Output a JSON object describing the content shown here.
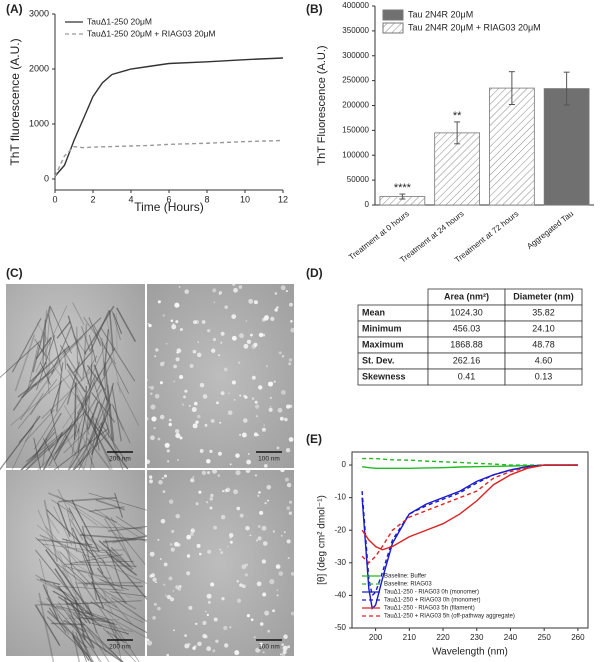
{
  "panel_labels": [
    "(A)",
    "(B)",
    "(C)",
    "(D)",
    "(E)"
  ],
  "chart_data": [
    {
      "type": "line",
      "x_label": "Time (Hours)",
      "y_label": "ThT fluorescence (A.U.)",
      "x": [
        0,
        0.5,
        1,
        1.5,
        2,
        2.5,
        3,
        4,
        5,
        6,
        8,
        10,
        12
      ],
      "xlim": [
        0,
        12
      ],
      "xticks": [
        0,
        2,
        4,
        6,
        8,
        10,
        12
      ],
      "ylim": [
        -200,
        3000
      ],
      "yticks": [
        0,
        1000,
        2000,
        3000
      ],
      "legend": "upper left",
      "frame": false,
      "series": [
        {
          "name": "TauΔ1-250 20μM",
          "color": "#333333",
          "dash": false,
          "values": [
            50,
            250,
            700,
            1100,
            1500,
            1750,
            1900,
            2000,
            2050,
            2100,
            2130,
            2170,
            2200
          ]
        },
        {
          "name": "TauΔ1-250 20μM + RIAG03 20μM",
          "color": "#999999",
          "dash": true,
          "values": [
            50,
            420,
            590,
            570,
            580,
            585,
            590,
            600,
            610,
            630,
            650,
            680,
            700
          ]
        }
      ]
    },
    {
      "type": "bar",
      "y_label": "ThT Fluorescence (A.U.)",
      "categories": [
        "Treatment at 0 hours",
        "Treatment at 24 hours",
        "Treatment at 72 hours",
        "Aggregated Tau"
      ],
      "ylim": [
        0,
        400000
      ],
      "yticks": [
        0,
        50000,
        100000,
        150000,
        200000,
        250000,
        300000,
        350000,
        400000
      ],
      "annotations": [
        "****",
        "**",
        null,
        null
      ],
      "legend": "upper left",
      "series": [
        {
          "name": "Tau 2N4R 20μM",
          "color": "#707070",
          "hatch": false,
          "values": [
            null,
            null,
            null,
            234000
          ],
          "errors": [
            null,
            null,
            null,
            33000
          ]
        },
        {
          "name": "Tau 2N4R 20μM + RIAG03 20μM",
          "color": "#ffffff",
          "hatch": true,
          "values": [
            17000,
            145000,
            235000,
            null
          ],
          "errors": [
            5000,
            22000,
            33000,
            null
          ]
        }
      ]
    },
    {
      "type": "line",
      "x_label": "Wavelength (nm)",
      "y_label": "[θ] (deg cm² dmol⁻¹)",
      "x": [
        196,
        198,
        199,
        200,
        202,
        205,
        210,
        215,
        220,
        225,
        230,
        235,
        240,
        245,
        250,
        260
      ],
      "xlim": [
        193,
        263
      ],
      "xticks": [
        200,
        210,
        220,
        230,
        240,
        250,
        260
      ],
      "ylim": [
        -50,
        4
      ],
      "yticks": [
        0,
        -10,
        -20,
        -30,
        -40,
        -50
      ],
      "legend": "lower left",
      "frame": true,
      "series": [
        {
          "name": "Baseline: Buffer",
          "color": "#22bb22",
          "dash": false,
          "values": [
            -0.5,
            -0.8,
            -0.9,
            -1,
            -1,
            -1,
            -1,
            -0.9,
            -0.8,
            -0.6,
            -0.5,
            -0.4,
            -0.3,
            -0.2,
            -0.1,
            0
          ]
        },
        {
          "name": "Baseline: RIAG03",
          "color": "#22bb22",
          "dash": true,
          "values": [
            2,
            2,
            2,
            2,
            1.8,
            1.6,
            1.5,
            1.2,
            1,
            0.8,
            0.5,
            0.3,
            0,
            0,
            0,
            0
          ]
        },
        {
          "name": "TauΔ1-250 - RIAG03 0h (monomer)",
          "color": "#1a1acc",
          "dash": false,
          "values": [
            -10,
            -38,
            -44,
            -43,
            -35,
            -24,
            -15,
            -12,
            -10,
            -8,
            -5,
            -3,
            -1.5,
            -0.5,
            0,
            0
          ]
        },
        {
          "name": "TauΔ1-250 + RIAG03 0h (monomer)",
          "color": "#1a1acc",
          "dash": true,
          "values": [
            -8,
            -35,
            -40,
            -39,
            -33,
            -23,
            -15,
            -12.5,
            -10.5,
            -8.5,
            -5.5,
            -3,
            -1.5,
            -0.5,
            0,
            0
          ]
        },
        {
          "name": "TauΔ1-250 - RIAG03 5h (filament)",
          "color": "#dd2222",
          "dash": false,
          "values": [
            -20,
            -23,
            -24,
            -25,
            -26,
            -25,
            -22,
            -20,
            -18,
            -15,
            -11,
            -6,
            -3,
            -1,
            0,
            0
          ]
        },
        {
          "name": "TauΔ1-250 + RIAG03 5h (off-pathway aggregate)",
          "color": "#dd2222",
          "dash": true,
          "values": [
            -28,
            -30,
            -29,
            -28,
            -25,
            -20,
            -16,
            -14,
            -12,
            -10,
            -8,
            -4,
            -2,
            -0.8,
            0,
            0
          ]
        }
      ]
    }
  ],
  "micrographs": {
    "scale_bars": [
      "200 nm",
      "100 nm",
      "200 nm",
      "100 nm"
    ]
  },
  "table": {
    "header": [
      "Area (nm²)",
      "Diameter (nm)"
    ],
    "rows": [
      [
        "Mean",
        "1024.30",
        "35.82"
      ],
      [
        "Minimum",
        "456.03",
        "24.10"
      ],
      [
        "Maximum",
        "1868.88",
        "48.78"
      ],
      [
        "St. Dev.",
        "262.16",
        "4.60"
      ],
      [
        "Skewness",
        "0.41",
        "0.13"
      ]
    ]
  }
}
